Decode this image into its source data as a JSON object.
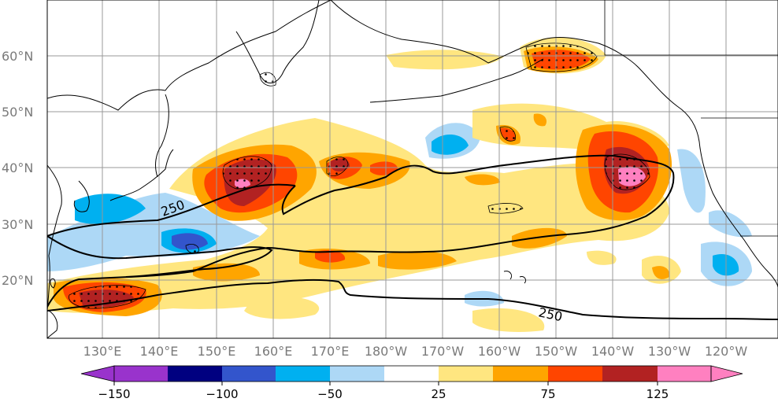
{
  "map": {
    "longitude_labels": [
      "130°E",
      "140°E",
      "150°E",
      "160°E",
      "170°E",
      "180°W",
      "170°W",
      "160°W",
      "150°W",
      "140°W",
      "130°W",
      "120°W"
    ],
    "latitude_labels": [
      "60°N",
      "50°N",
      "40°N",
      "30°N",
      "20°N"
    ],
    "contour_labels": [
      "250",
      "250"
    ],
    "colors": {
      "c_m150": "#9933cc",
      "c_m125": "#000080",
      "c_m100": "#3355cc",
      "c_m75": "#00b0f0",
      "c_m50": "#add8f6",
      "c_p25": "#ffe680",
      "c_p50": "#ffa500",
      "c_p75": "#ff4500",
      "c_p100": "#b22222",
      "c_p125": "#ff80c0"
    }
  },
  "colorbar": {
    "tick_labels": [
      "−150",
      "−100",
      "−50",
      "25",
      "75",
      "125"
    ]
  }
}
